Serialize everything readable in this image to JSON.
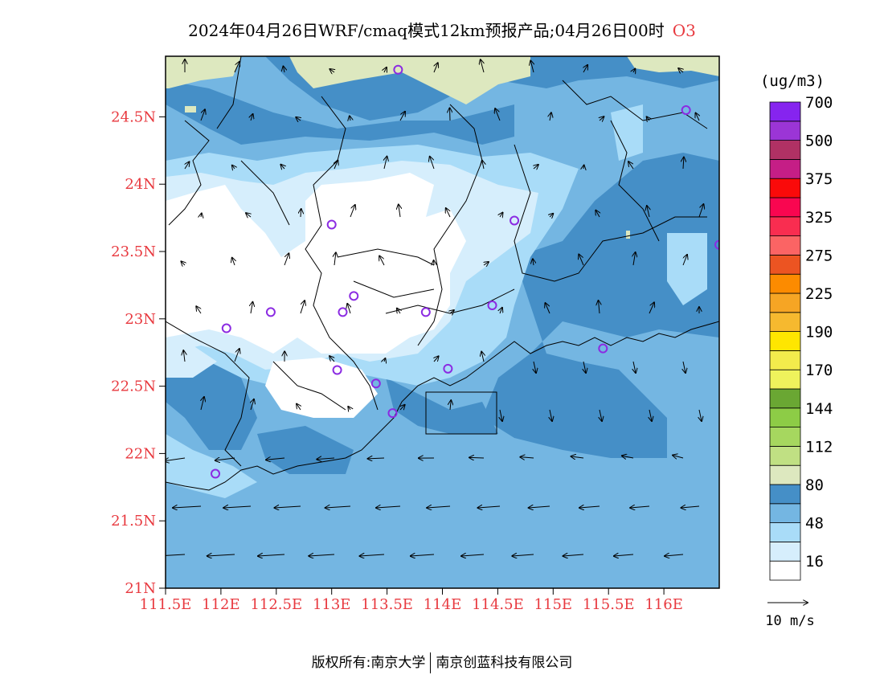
{
  "title": {
    "text": "2024年04月26日WRF/cmaq模式12km预报产品;04月26日00时",
    "pollutant": "O3"
  },
  "footer": {
    "left": "版权所有:南京大学",
    "right": "南京创蓝科技有限公司"
  },
  "map": {
    "lat_ticks": [
      {
        "value": 24.5,
        "label": "24.5N"
      },
      {
        "value": 24.0,
        "label": "24N"
      },
      {
        "value": 23.5,
        "label": "23.5N"
      },
      {
        "value": 23.0,
        "label": "23N"
      },
      {
        "value": 22.5,
        "label": "22.5N"
      },
      {
        "value": 22.0,
        "label": "22N"
      },
      {
        "value": 21.5,
        "label": "21.5N"
      },
      {
        "value": 21.0,
        "label": "21N"
      }
    ],
    "lon_ticks": [
      {
        "value": 111.5,
        "label": "111.5E"
      },
      {
        "value": 112.0,
        "label": "112E"
      },
      {
        "value": 112.5,
        "label": "112.5E"
      },
      {
        "value": 113.0,
        "label": "113E"
      },
      {
        "value": 113.5,
        "label": "113.5E"
      },
      {
        "value": 114.0,
        "label": "114E"
      },
      {
        "value": 114.5,
        "label": "114.5E"
      },
      {
        "value": 115.0,
        "label": "115E"
      },
      {
        "value": 115.5,
        "label": "115.5E"
      },
      {
        "value": 116.0,
        "label": "116E"
      }
    ],
    "lon_range": [
      111.5,
      116.5
    ],
    "lat_range": [
      21.0,
      24.95
    ],
    "stations": [
      [
        113.6,
        24.85
      ],
      [
        116.2,
        24.55
      ],
      [
        114.65,
        23.73
      ],
      [
        116.5,
        23.55
      ],
      [
        113.0,
        23.7
      ],
      [
        112.45,
        23.05
      ],
      [
        112.05,
        22.93
      ],
      [
        113.1,
        23.05
      ],
      [
        113.2,
        23.17
      ],
      [
        113.85,
        23.05
      ],
      [
        114.45,
        23.1
      ],
      [
        115.45,
        22.78
      ],
      [
        113.05,
        22.62
      ],
      [
        113.4,
        22.52
      ],
      [
        114.05,
        22.63
      ],
      [
        113.55,
        22.3
      ],
      [
        111.95,
        21.85
      ]
    ]
  },
  "colorbar": {
    "unit": "(ug/m3)",
    "colors": [
      "#ffffff",
      "#d6eefc",
      "#a9dcf8",
      "#74b6e2",
      "#458fc7",
      "#dde8bf",
      "#c0e083",
      "#a6d75f",
      "#8dcc46",
      "#6aa733",
      "#eff25c",
      "#f3eb4c",
      "#ffe600",
      "#f6b92f",
      "#f6a524",
      "#fc8b00",
      "#ec5422",
      "#fb6464",
      "#f92d50",
      "#f90650",
      "#fa0a0a",
      "#c51e86",
      "#b03164",
      "#9b35d6",
      "#8624ef"
    ],
    "labels": [
      {
        "index": 1,
        "label": "16"
      },
      {
        "index": 3,
        "label": "48"
      },
      {
        "index": 5,
        "label": "80"
      },
      {
        "index": 7,
        "label": "112"
      },
      {
        "index": 9,
        "label": "144"
      },
      {
        "index": 11,
        "label": "170"
      },
      {
        "index": 13,
        "label": "190"
      },
      {
        "index": 15,
        "label": "225"
      },
      {
        "index": 17,
        "label": "275"
      },
      {
        "index": 19,
        "label": "325"
      },
      {
        "index": 21,
        "label": "375"
      },
      {
        "index": 23,
        "label": "500"
      },
      {
        "index": 25,
        "label": "700"
      }
    ]
  },
  "wind_legend": {
    "label": "10 m/s"
  }
}
